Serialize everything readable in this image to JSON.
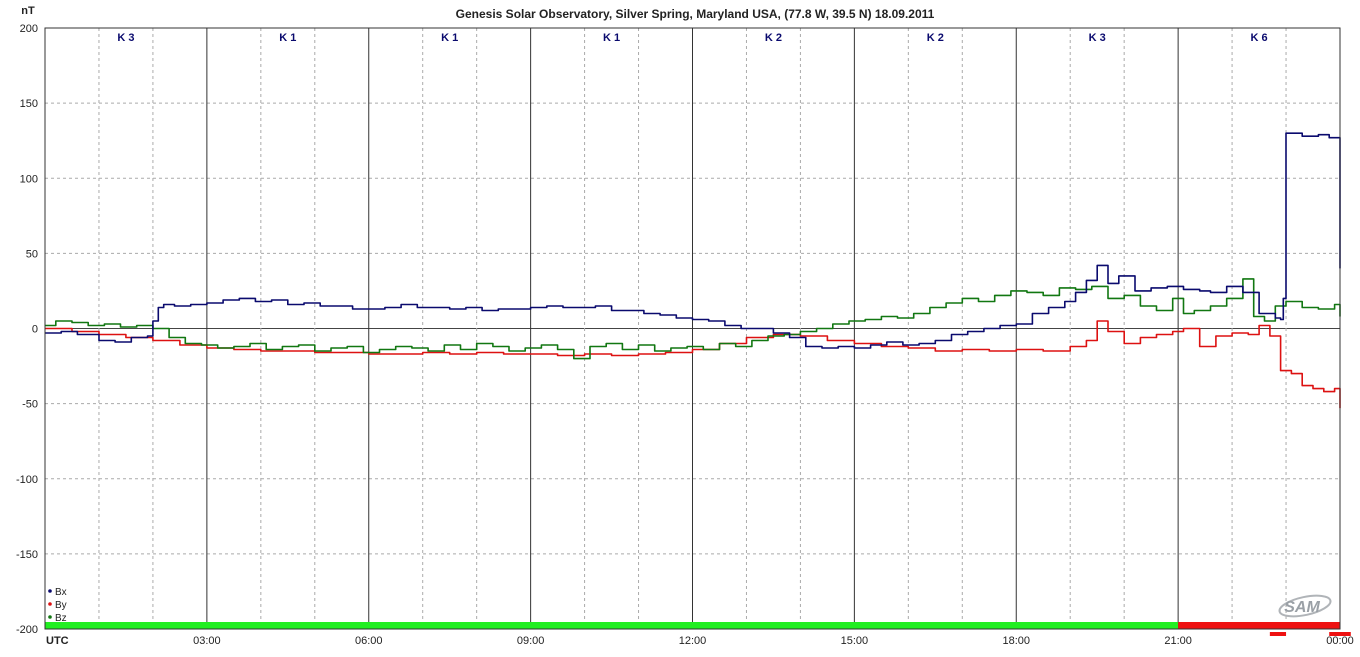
{
  "chart_data": {
    "type": "line",
    "title": "Genesis Solar Observatory, Silver Spring, Maryland USA, (77.8 W, 39.5 N)  18.09.2011",
    "ylabel": "nT",
    "xlabel": "UTC",
    "ylim": [
      -200,
      200
    ],
    "yticks": [
      200,
      150,
      100,
      50,
      0,
      -50,
      -100,
      -150,
      -200
    ],
    "xlim": [
      0,
      24
    ],
    "xticks": [
      {
        "x": 3,
        "label": "03:00"
      },
      {
        "x": 6,
        "label": "06:00"
      },
      {
        "x": 9,
        "label": "09:00"
      },
      {
        "x": 12,
        "label": "12:00"
      },
      {
        "x": 15,
        "label": "15:00"
      },
      {
        "x": 18,
        "label": "18:00"
      },
      {
        "x": 21,
        "label": "21:00"
      },
      {
        "x": 24,
        "label": "00:00"
      }
    ],
    "grid": true,
    "legend_position": "bottom-left",
    "k_indices": [
      {
        "start": 0,
        "label": "K 3"
      },
      {
        "start": 3,
        "label": "K 1"
      },
      {
        "start": 6,
        "label": "K 1"
      },
      {
        "start": 9,
        "label": "K 1"
      },
      {
        "start": 12,
        "label": "K 2"
      },
      {
        "start": 15,
        "label": "K 2"
      },
      {
        "start": 18,
        "label": "K 3"
      },
      {
        "start": 21,
        "label": "K 6"
      }
    ],
    "status_bar": [
      {
        "start": 0,
        "end": 21,
        "color": "#22ee22"
      },
      {
        "start": 21,
        "end": 24,
        "color": "#ee1111"
      }
    ],
    "status_marks": [
      {
        "start": 22.7,
        "end": 23.0
      },
      {
        "start": 23.8,
        "end": 24.2
      }
    ],
    "series": [
      {
        "name": "Bx",
        "color": "#0a0a6e",
        "x": [
          0,
          0.3,
          0.6,
          1.0,
          1.3,
          1.6,
          1.9,
          2.0,
          2.1,
          2.2,
          2.4,
          2.7,
          3.0,
          3.3,
          3.6,
          3.9,
          4.2,
          4.5,
          4.8,
          5.1,
          5.4,
          5.7,
          6.0,
          6.3,
          6.6,
          6.9,
          7.2,
          7.5,
          7.8,
          8.1,
          8.4,
          8.7,
          9.0,
          9.3,
          9.6,
          9.9,
          10.2,
          10.5,
          10.8,
          11.1,
          11.4,
          11.7,
          12.0,
          12.3,
          12.6,
          12.9,
          13.2,
          13.5,
          13.8,
          14.1,
          14.4,
          14.7,
          15.0,
          15.3,
          15.6,
          15.9,
          16.2,
          16.5,
          16.8,
          17.1,
          17.4,
          17.7,
          18.0,
          18.3,
          18.6,
          18.9,
          19.1,
          19.3,
          19.5,
          19.7,
          19.9,
          20.2,
          20.5,
          20.8,
          21.1,
          21.4,
          21.6,
          21.9,
          22.2,
          22.5,
          22.8,
          22.9,
          22.95,
          23.0,
          23.3,
          23.6,
          23.8,
          24.0,
          24.0,
          24.0
        ],
        "y": [
          -3,
          -2,
          -4,
          -8,
          -9,
          -6,
          -5,
          5,
          14,
          16,
          15,
          16,
          17,
          19,
          20,
          18,
          19,
          16,
          17,
          15,
          15,
          13,
          13,
          14,
          16,
          14,
          14,
          13,
          14,
          12,
          13,
          13,
          14,
          15,
          14,
          14,
          15,
          12,
          12,
          10,
          9,
          7,
          6,
          5,
          2,
          0,
          0,
          -3,
          -6,
          -12,
          -13,
          -12,
          -13,
          -11,
          -9,
          -11,
          -10,
          -8,
          -4,
          -2,
          0,
          2,
          3,
          10,
          14,
          18,
          24,
          32,
          42,
          30,
          35,
          25,
          27,
          28,
          26,
          25,
          24,
          28,
          24,
          10,
          7,
          6,
          20,
          130,
          128,
          129,
          127,
          122,
          108,
          40
        ]
      },
      {
        "name": "By",
        "color": "#dd1111",
        "x": [
          0,
          0.5,
          1.0,
          1.5,
          2.0,
          2.5,
          3.0,
          3.5,
          4.0,
          4.5,
          5.0,
          5.5,
          6.0,
          6.5,
          7.0,
          7.5,
          8.0,
          8.5,
          9.0,
          9.5,
          10.0,
          10.5,
          11.0,
          11.5,
          12.0,
          12.5,
          13.0,
          13.5,
          14.0,
          14.5,
          15.0,
          15.5,
          16.0,
          16.5,
          17.0,
          17.5,
          18.0,
          18.5,
          19.0,
          19.3,
          19.5,
          19.7,
          20.0,
          20.3,
          20.6,
          20.9,
          21.1,
          21.4,
          21.7,
          22.0,
          22.3,
          22.5,
          22.7,
          22.9,
          23.1,
          23.3,
          23.5,
          23.7,
          23.9,
          24.0
        ],
        "y": [
          0,
          -2,
          -4,
          -6,
          -8,
          -11,
          -13,
          -14,
          -15,
          -15,
          -16,
          -16,
          -17,
          -17,
          -16,
          -17,
          -16,
          -17,
          -17,
          -18,
          -17,
          -18,
          -17,
          -16,
          -14,
          -10,
          -6,
          -4,
          -5,
          -8,
          -10,
          -12,
          -13,
          -15,
          -14,
          -15,
          -14,
          -15,
          -12,
          -8,
          5,
          -2,
          -10,
          -6,
          -4,
          -2,
          0,
          -12,
          -5,
          -3,
          -4,
          2,
          -5,
          -28,
          -30,
          -38,
          -40,
          -42,
          -40,
          -53
        ]
      },
      {
        "name": "Bz",
        "color": "#117711",
        "x": [
          0,
          0.2,
          0.5,
          0.8,
          1.1,
          1.4,
          1.7,
          2.0,
          2.3,
          2.6,
          2.9,
          3.2,
          3.5,
          3.8,
          4.1,
          4.4,
          4.7,
          5.0,
          5.3,
          5.6,
          5.9,
          6.2,
          6.5,
          6.8,
          7.1,
          7.4,
          7.7,
          8.0,
          8.3,
          8.6,
          8.9,
          9.2,
          9.5,
          9.8,
          10.1,
          10.4,
          10.7,
          11.0,
          11.3,
          11.6,
          11.9,
          12.2,
          12.5,
          12.8,
          13.1,
          13.4,
          13.7,
          14.0,
          14.3,
          14.6,
          14.9,
          15.2,
          15.5,
          15.8,
          16.1,
          16.4,
          16.7,
          17.0,
          17.3,
          17.6,
          17.9,
          18.2,
          18.5,
          18.8,
          19.1,
          19.4,
          19.7,
          20.0,
          20.3,
          20.6,
          20.9,
          21.1,
          21.3,
          21.6,
          21.9,
          22.2,
          22.4,
          22.6,
          22.8,
          23.0,
          23.3,
          23.6,
          23.9,
          24.0
        ],
        "y": [
          2,
          5,
          4,
          2,
          3,
          1,
          2,
          0,
          -6,
          -10,
          -11,
          -13,
          -12,
          -10,
          -14,
          -12,
          -11,
          -15,
          -13,
          -12,
          -16,
          -14,
          -12,
          -13,
          -15,
          -11,
          -14,
          -10,
          -12,
          -15,
          -13,
          -11,
          -14,
          -20,
          -12,
          -10,
          -14,
          -11,
          -15,
          -13,
          -12,
          -14,
          -10,
          -12,
          -8,
          -5,
          -4,
          -2,
          0,
          3,
          5,
          6,
          8,
          7,
          10,
          14,
          17,
          20,
          18,
          22,
          25,
          24,
          22,
          27,
          26,
          28,
          20,
          22,
          15,
          12,
          20,
          10,
          12,
          15,
          20,
          33,
          8,
          5,
          15,
          18,
          14,
          13,
          16,
          8
        ]
      }
    ]
  },
  "branding": {
    "logo_text": "SAM"
  }
}
